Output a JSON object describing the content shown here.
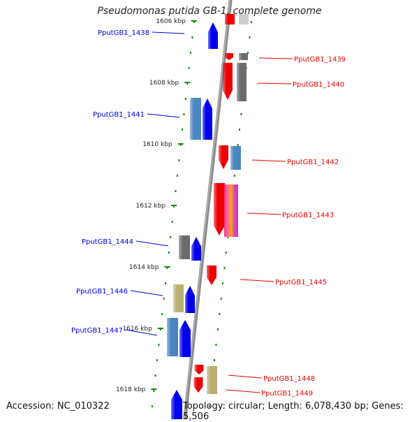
{
  "title": "Pseudomonas putida GB-1, complete genome",
  "accession": "Accession: NC_010322",
  "topology": "Topology: circular; Length: 6,078,430 bp; Genes: 5,506",
  "colors": {
    "forward": "#0000ee",
    "reverse": "#ee0000",
    "axis": "#8a8a8a",
    "tick": "#118811",
    "cog_blue": "#4a86c0",
    "cog_gray": "#6b6b6b",
    "cog_khaki": "#b8b070"
  },
  "scale_labels": [
    {
      "label": "1606 kbp"
    },
    {
      "label": "1608 kbp"
    },
    {
      "label": "1610 kbp"
    },
    {
      "label": "1612 kbp"
    },
    {
      "label": "1614 kbp"
    },
    {
      "label": "1616 kbp"
    },
    {
      "label": "1618 kbp"
    }
  ],
  "forward_genes": [
    {
      "label": "PputGB1_1438"
    },
    {
      "label": "PputGB1_1441"
    },
    {
      "label": "PputGB1_1444"
    },
    {
      "label": "PputGB1_1446"
    },
    {
      "label": "PputGB1_1447"
    }
  ],
  "reverse_genes": [
    {
      "label": "PputGB1_1439"
    },
    {
      "label": "PputGB1_1440"
    },
    {
      "label": "PputGB1_1442"
    },
    {
      "label": "PputGB1_1443"
    },
    {
      "label": "PputGB1_1445"
    },
    {
      "label": "PputGB1_1448"
    },
    {
      "label": "PputGB1_1449"
    }
  ]
}
